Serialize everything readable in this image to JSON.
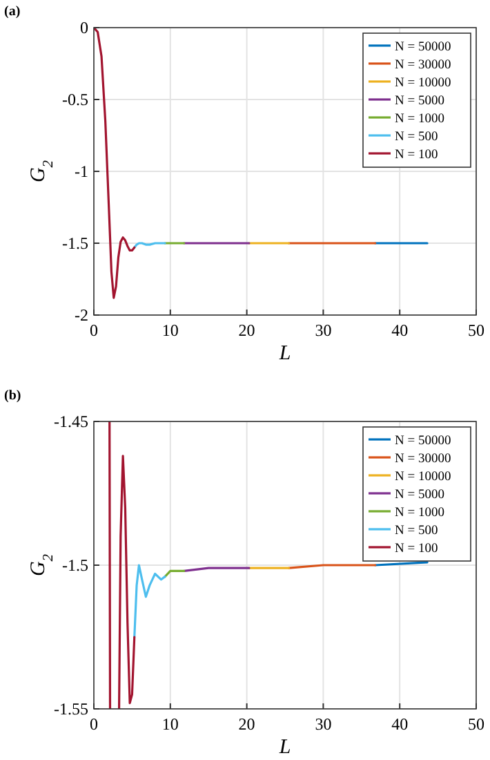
{
  "chart_data": [
    {
      "type": "line",
      "title": "(a)",
      "xlabel": "L",
      "ylabel": "G$_{2}$",
      "xlim": [
        0,
        50
      ],
      "xticks": [
        0,
        10,
        20,
        30,
        40,
        50
      ],
      "ylim": [
        -2,
        0
      ],
      "yticks": [
        -2,
        -1.5,
        -1,
        -0.5,
        0
      ],
      "grid": true,
      "legend": "top right",
      "line_style": "solid",
      "marker": "none",
      "x": [
        0,
        0.5,
        1,
        1.5,
        2,
        2.3,
        2.6,
        2.9,
        3.2,
        3.5,
        3.8,
        4.1,
        4.4,
        4.7,
        5.0,
        5.3,
        5.6,
        5.9,
        6.3,
        6.8,
        7.3,
        8.0,
        8.8,
        9.3,
        10,
        11.8,
        15,
        20.3,
        25.5,
        30,
        36.8,
        43.6
      ],
      "series": [
        {
          "name": "N = 50000",
          "color": "#0072bd",
          "values": [
            null,
            null,
            null,
            null,
            null,
            null,
            null,
            null,
            null,
            null,
            null,
            null,
            null,
            null,
            null,
            null,
            null,
            null,
            null,
            null,
            null,
            null,
            null,
            null,
            null,
            null,
            null,
            null,
            null,
            null,
            -1.5,
            -1.5
          ]
        },
        {
          "name": "N = 30000",
          "color": "#d95319",
          "values": [
            null,
            null,
            null,
            null,
            null,
            null,
            null,
            null,
            null,
            null,
            null,
            null,
            null,
            null,
            null,
            null,
            null,
            null,
            null,
            null,
            null,
            null,
            null,
            null,
            null,
            null,
            null,
            null,
            -1.5,
            -1.5,
            -1.5,
            null
          ]
        },
        {
          "name": "N = 10000",
          "color": "#edb120",
          "values": [
            null,
            null,
            null,
            null,
            null,
            null,
            null,
            null,
            null,
            null,
            null,
            null,
            null,
            null,
            null,
            null,
            null,
            null,
            null,
            null,
            null,
            null,
            null,
            null,
            null,
            null,
            null,
            -1.5,
            -1.5,
            null,
            null,
            null
          ]
        },
        {
          "name": "N = 5000",
          "color": "#7e2f8e",
          "values": [
            null,
            null,
            null,
            null,
            null,
            null,
            null,
            null,
            null,
            null,
            null,
            null,
            null,
            null,
            null,
            null,
            null,
            null,
            null,
            null,
            null,
            null,
            null,
            null,
            null,
            -1.5,
            -1.5,
            -1.5,
            null,
            null,
            null,
            null
          ]
        },
        {
          "name": "N = 1000",
          "color": "#77ac30",
          "values": [
            null,
            null,
            null,
            null,
            null,
            null,
            null,
            null,
            null,
            null,
            null,
            null,
            null,
            null,
            null,
            null,
            null,
            null,
            null,
            null,
            null,
            null,
            null,
            -1.5,
            -1.5,
            -1.5,
            null,
            null,
            null,
            null,
            null,
            null
          ]
        },
        {
          "name": "N = 500",
          "color": "#4dbeee",
          "values": [
            null,
            null,
            null,
            null,
            null,
            null,
            null,
            null,
            null,
            null,
            null,
            null,
            null,
            null,
            null,
            -1.53,
            -1.51,
            -1.5,
            -1.5,
            -1.51,
            -1.51,
            -1.5,
            -1.5,
            -1.5,
            null,
            null,
            null,
            null,
            null,
            null,
            null,
            null
          ]
        },
        {
          "name": "N = 100",
          "color": "#a2142f",
          "values": [
            0,
            -0.03,
            -0.2,
            -0.65,
            -1.3,
            -1.7,
            -1.88,
            -1.8,
            -1.6,
            -1.49,
            -1.46,
            -1.48,
            -1.52,
            -1.55,
            -1.55,
            -1.53,
            null,
            null,
            null,
            null,
            null,
            null,
            null,
            null,
            null,
            null,
            null,
            null,
            null,
            null,
            null,
            null
          ]
        }
      ]
    },
    {
      "type": "line",
      "title": "(b)",
      "xlabel": "L",
      "ylabel": "G$_{2}$",
      "xlim": [
        0,
        50
      ],
      "xticks": [
        0,
        10,
        20,
        30,
        40,
        50
      ],
      "ylim": [
        -1.55,
        -1.45
      ],
      "yticks": [
        -1.55,
        -1.5,
        -1.45
      ],
      "grid": true,
      "legend": "top right",
      "line_style": "solid",
      "marker": "none",
      "x": [
        2.05,
        2.12,
        2.6,
        3.3,
        3.5,
        3.8,
        4.1,
        4.4,
        4.7,
        5.0,
        5.3,
        5.6,
        5.9,
        6.3,
        6.8,
        7.3,
        8.0,
        8.8,
        9.3,
        10,
        11.8,
        15,
        20.3,
        25.5,
        30,
        36.8,
        43.6
      ],
      "series": [
        {
          "name": "N = 50000",
          "color": "#0072bd",
          "values": [
            null,
            null,
            null,
            null,
            null,
            null,
            null,
            null,
            null,
            null,
            null,
            null,
            null,
            null,
            null,
            null,
            null,
            null,
            null,
            null,
            null,
            null,
            null,
            null,
            null,
            -1.5,
            -1.499
          ]
        },
        {
          "name": "N = 30000",
          "color": "#d95319",
          "values": [
            null,
            null,
            null,
            null,
            null,
            null,
            null,
            null,
            null,
            null,
            null,
            null,
            null,
            null,
            null,
            null,
            null,
            null,
            null,
            null,
            null,
            null,
            null,
            -1.501,
            -1.5,
            -1.5,
            null
          ]
        },
        {
          "name": "N = 10000",
          "color": "#edb120",
          "values": [
            null,
            null,
            null,
            null,
            null,
            null,
            null,
            null,
            null,
            null,
            null,
            null,
            null,
            null,
            null,
            null,
            null,
            null,
            null,
            null,
            null,
            null,
            -1.501,
            -1.501,
            null,
            null,
            null
          ]
        },
        {
          "name": "N = 5000",
          "color": "#7e2f8e",
          "values": [
            null,
            null,
            null,
            null,
            null,
            null,
            null,
            null,
            null,
            null,
            null,
            null,
            null,
            null,
            null,
            null,
            null,
            null,
            null,
            null,
            -1.502,
            -1.501,
            -1.501,
            null,
            null,
            null,
            null
          ]
        },
        {
          "name": "N = 1000",
          "color": "#77ac30",
          "values": [
            null,
            null,
            null,
            null,
            null,
            null,
            null,
            null,
            null,
            null,
            null,
            null,
            null,
            null,
            null,
            null,
            null,
            null,
            -1.504,
            -1.502,
            -1.502,
            null,
            null,
            null,
            null,
            null,
            null
          ]
        },
        {
          "name": "N = 500",
          "color": "#4dbeee",
          "values": [
            null,
            null,
            null,
            null,
            null,
            null,
            null,
            null,
            null,
            null,
            -1.525,
            -1.507,
            -1.5,
            -1.505,
            -1.511,
            -1.507,
            -1.503,
            -1.505,
            -1.504,
            null,
            null,
            null,
            null,
            null,
            null,
            null,
            null
          ]
        },
        {
          "name": "N = 100",
          "color": "#a2142f",
          "values": [
            -1.45,
            -1.55,
            null,
            -1.55,
            -1.49,
            -1.462,
            -1.48,
            -1.52,
            -1.548,
            -1.545,
            -1.525,
            null,
            null,
            null,
            null,
            null,
            null,
            null,
            null,
            null,
            null,
            null,
            null,
            null,
            null,
            null,
            null
          ]
        }
      ]
    }
  ]
}
